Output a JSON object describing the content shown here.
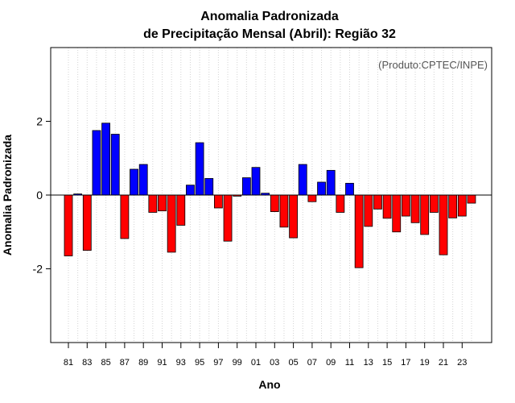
{
  "chart_data": {
    "type": "bar",
    "title_line1": "Anomalia Padronizada",
    "title_line2": "de Precipitação Mensal (Abril): Região 32",
    "xlabel": "Ano",
    "ylabel": "Anomalia Padronizada",
    "credit": "(Produto:CPTEC/INPE)",
    "ylim": [
      -4,
      4
    ],
    "yticks": [
      -2,
      0,
      2
    ],
    "ytick_labels": [
      "-2",
      "0",
      "2"
    ],
    "xtick_labels": [
      "81",
      "83",
      "85",
      "87",
      "89",
      "91",
      "93",
      "95",
      "97",
      "99",
      "01",
      "03",
      "05",
      "07",
      "09",
      "11",
      "13",
      "15",
      "17",
      "19",
      "21",
      "23"
    ],
    "colors": {
      "positive": "#0000ff",
      "negative": "#ff0000"
    },
    "categories": [
      "81",
      "82",
      "83",
      "84",
      "85",
      "86",
      "87",
      "88",
      "89",
      "90",
      "91",
      "92",
      "93",
      "94",
      "95",
      "96",
      "97",
      "98",
      "99",
      "00",
      "01",
      "02",
      "03",
      "04",
      "05",
      "06",
      "07",
      "08",
      "09",
      "10",
      "11",
      "12",
      "13",
      "14",
      "15",
      "16",
      "17",
      "18",
      "19",
      "20",
      "21",
      "22",
      "23",
      "24"
    ],
    "values": [
      -1.65,
      0.03,
      -1.5,
      1.75,
      1.95,
      1.65,
      -1.18,
      0.7,
      0.83,
      -0.47,
      -0.43,
      -1.55,
      -0.82,
      0.27,
      1.42,
      0.45,
      -0.35,
      -1.25,
      -0.03,
      0.47,
      0.75,
      0.05,
      -0.45,
      -0.87,
      -1.16,
      0.83,
      -0.18,
      0.35,
      0.67,
      -0.47,
      0.32,
      -1.97,
      -0.85,
      -0.38,
      -0.63,
      -1.0,
      -0.57,
      -0.75,
      -1.07,
      -0.47,
      -1.62,
      -0.62,
      -0.57,
      -0.22
    ]
  }
}
